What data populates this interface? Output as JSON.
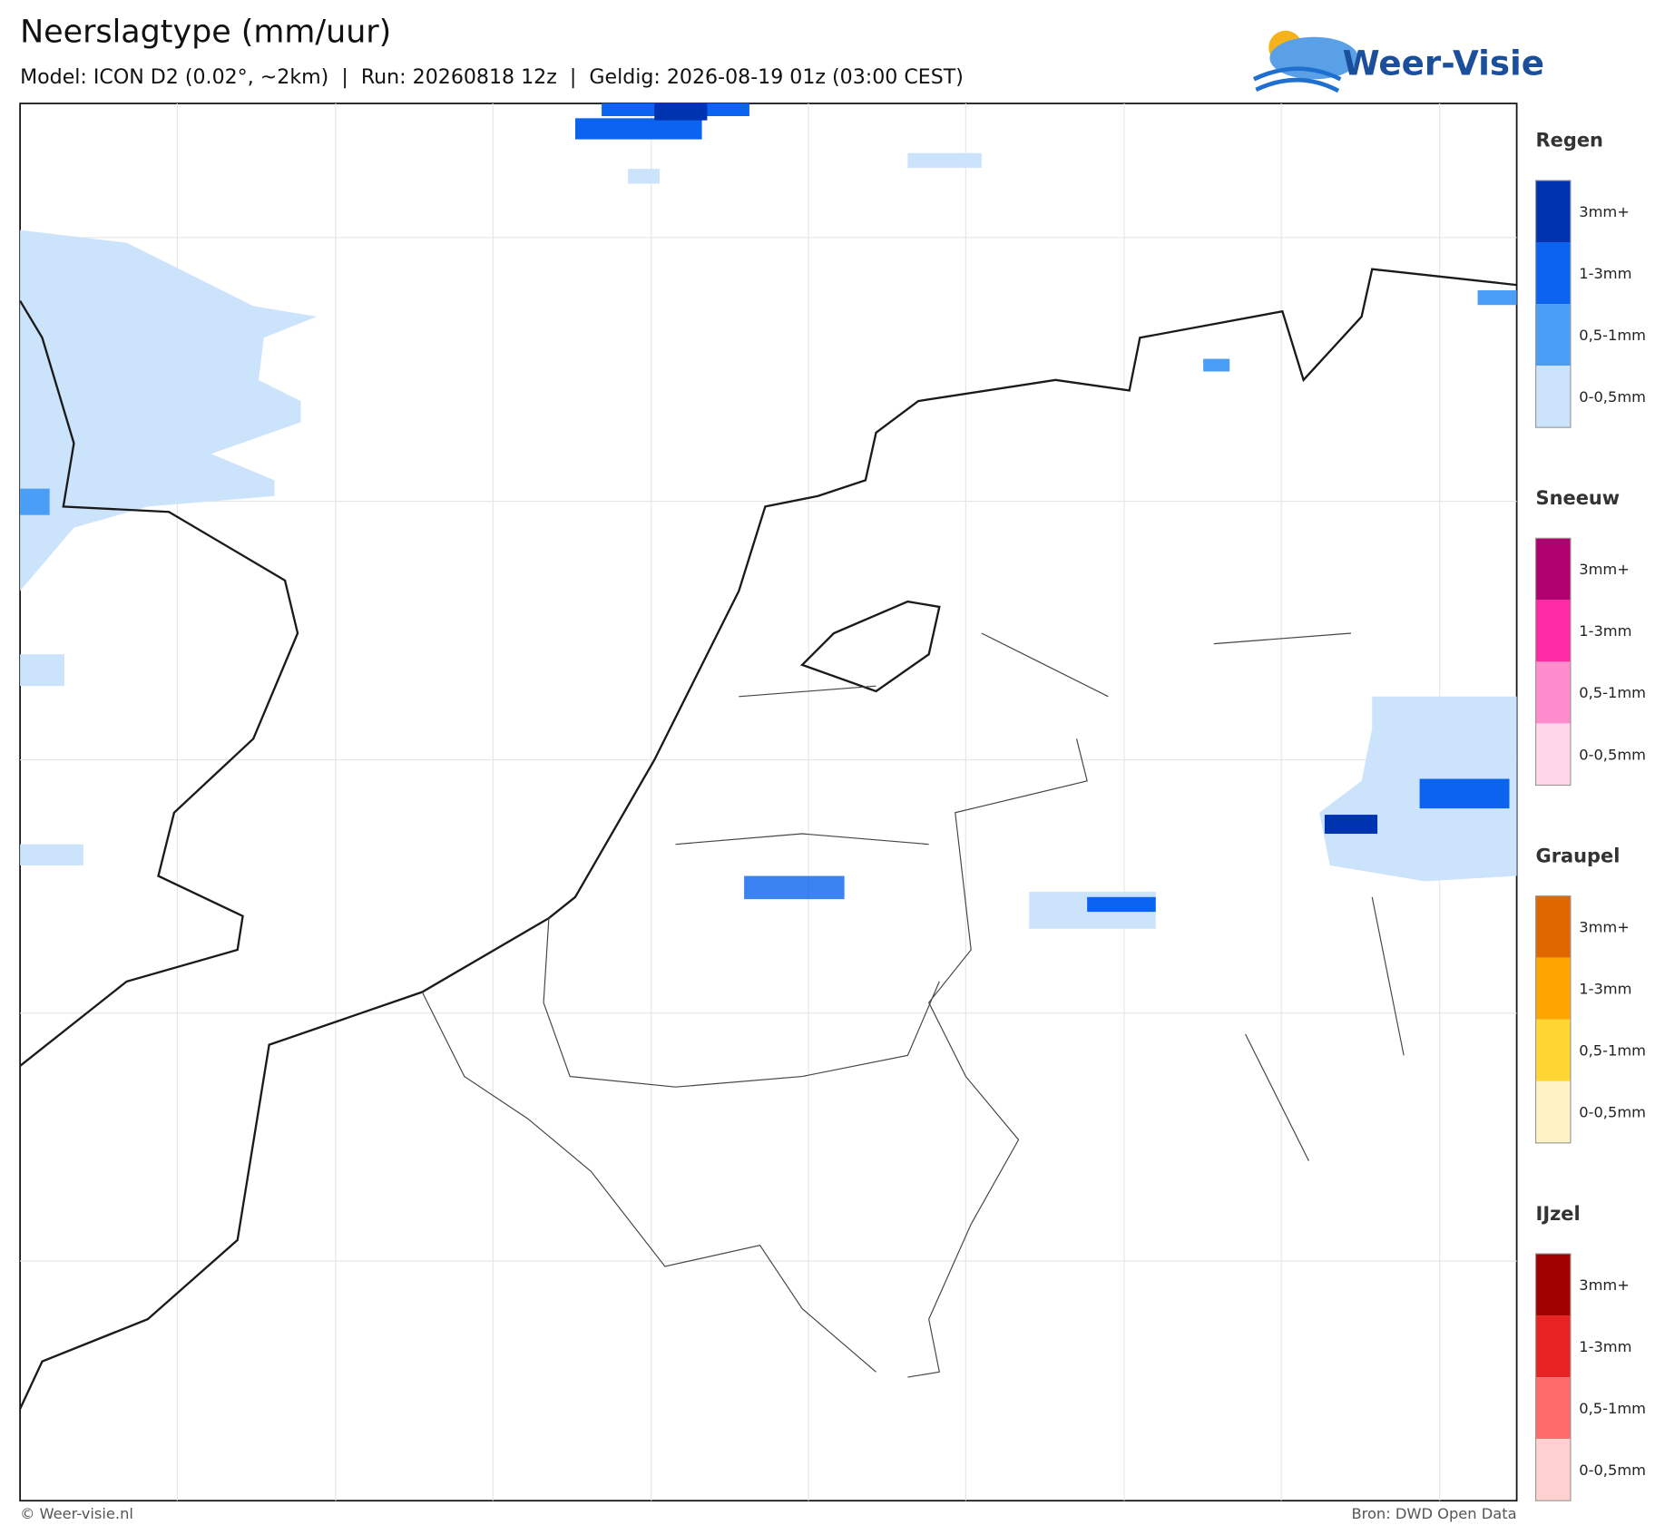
{
  "header": {
    "title": "Neerslagtype (mm/uur)",
    "subtitle": "Model: ICON D2 (0.02°, ~2km)  |  Run: 20260818 12z  |  Geldig: 2026-08-19 01z (03:00 CEST)",
    "logo": "Weer-Visie"
  },
  "legend": [
    {
      "title": "Regen",
      "items": [
        {
          "label": "3mm+",
          "color": "#0033b0"
        },
        {
          "label": "1-3mm",
          "color": "#0a64f0"
        },
        {
          "label": "0,5-1mm",
          "color": "#4a9ef5"
        },
        {
          "label": "0-0,5mm",
          "color": "#cce3fc"
        }
      ]
    },
    {
      "title": "Sneeuw",
      "items": [
        {
          "label": "3mm+",
          "color": "#b0006e"
        },
        {
          "label": "1-3mm",
          "color": "#ff2aa6"
        },
        {
          "label": "0,5-1mm",
          "color": "#ff8ccc"
        },
        {
          "label": "0-0,5mm",
          "color": "#ffd6ea"
        }
      ]
    },
    {
      "title": "Graupel",
      "items": [
        {
          "label": "3mm+",
          "color": "#e06600"
        },
        {
          "label": "1-3mm",
          "color": "#ffa500"
        },
        {
          "label": "0,5-1mm",
          "color": "#ffd633"
        },
        {
          "label": "0-0,5mm",
          "color": "#fff2c4"
        }
      ]
    },
    {
      "title": "IJzel",
      "items": [
        {
          "label": "3mm+",
          "color": "#a00000"
        },
        {
          "label": "1-3mm",
          "color": "#e82222"
        },
        {
          "label": "0,5-1mm",
          "color": "#ff6b6b"
        },
        {
          "label": "0-0,5mm",
          "color": "#ffd0d0"
        }
      ]
    }
  ],
  "footer": {
    "copyright": "© Weer-visie.nl",
    "source": "Bron: DWD Open Data"
  }
}
